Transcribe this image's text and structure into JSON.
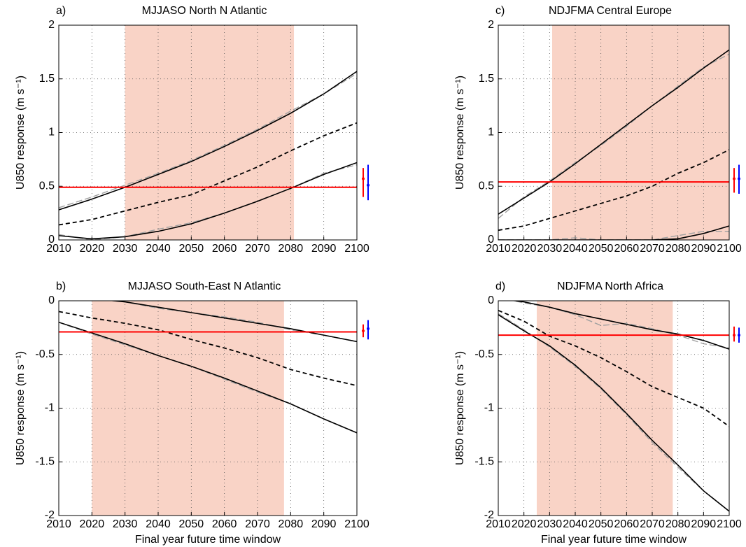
{
  "chart_data": [
    {
      "type": "line",
      "label": "a)",
      "title": "MJJASO North N Atlantic",
      "ylabel": "U850 response (m s⁻¹)",
      "x": [
        2010,
        2020,
        2030,
        2040,
        2050,
        2060,
        2070,
        2080,
        2090,
        2100
      ],
      "xlim": [
        2010,
        2100
      ],
      "xticks": [
        2010,
        2020,
        2030,
        2040,
        2050,
        2060,
        2070,
        2080,
        2090,
        2100
      ],
      "ylim": [
        0,
        2
      ],
      "yticks": [
        0,
        0.5,
        1,
        1.5,
        2
      ],
      "grid": true,
      "shade": [
        2030,
        2081
      ],
      "shade_color": "#f9d3c6",
      "threshold": 0.49,
      "threshold_color": "#ff0000",
      "series": [
        {
          "color": "#a0a0a0",
          "style": "dashed",
          "values": [
            0.3,
            0.4,
            0.51,
            0.62,
            0.74,
            0.88,
            1.03,
            1.2,
            1.36,
            1.55
          ]
        },
        {
          "color": "#a0a0a0",
          "style": "dashed",
          "values": [
            0.05,
            0.0,
            0.03,
            0.1,
            0.16,
            0.25,
            0.36,
            0.48,
            0.62,
            0.7
          ]
        },
        {
          "color": "#000000",
          "style": "solid",
          "values": [
            0.28,
            0.38,
            0.49,
            0.61,
            0.73,
            0.87,
            1.02,
            1.18,
            1.36,
            1.57
          ]
        },
        {
          "color": "#000000",
          "style": "dashed",
          "values": [
            0.14,
            0.19,
            0.27,
            0.35,
            0.42,
            0.55,
            0.68,
            0.83,
            0.97,
            1.09
          ]
        },
        {
          "color": "#000000",
          "style": "solid",
          "values": [
            0.04,
            0.01,
            0.03,
            0.08,
            0.15,
            0.25,
            0.36,
            0.48,
            0.61,
            0.72
          ]
        }
      ],
      "error_bars": [
        {
          "color": "#ff0000",
          "value": 0.57,
          "low": 0.4,
          "high": 0.67
        },
        {
          "color": "#0000ff",
          "value": 0.51,
          "low": 0.37,
          "high": 0.7
        }
      ]
    },
    {
      "type": "line",
      "label": "c)",
      "title": "NDJFMA Central Europe",
      "ylabel": "U850 response (m s⁻¹)",
      "x": [
        2010,
        2020,
        2030,
        2040,
        2050,
        2060,
        2070,
        2080,
        2090,
        2100
      ],
      "xlim": [
        2010,
        2100
      ],
      "xticks": [
        2010,
        2020,
        2030,
        2040,
        2050,
        2060,
        2070,
        2080,
        2090,
        2100
      ],
      "ylim": [
        0,
        2
      ],
      "yticks": [
        0,
        0.5,
        1,
        1.5,
        2
      ],
      "grid": true,
      "shade": [
        2031,
        2100
      ],
      "shade_color": "#f9d3c6",
      "threshold": 0.54,
      "threshold_color": "#ff0000",
      "series": [
        {
          "color": "#a0a0a0",
          "style": "dashed",
          "values": [
            0.2,
            0.4,
            0.55,
            0.72,
            0.88,
            1.06,
            1.25,
            1.43,
            1.61,
            1.73
          ]
        },
        {
          "color": "#a0a0a0",
          "style": "dashed",
          "values": [
            0,
            0,
            0,
            0.02,
            0,
            0,
            0,
            0.04,
            0.08,
            0.08
          ]
        },
        {
          "color": "#000000",
          "style": "solid",
          "values": [
            0.24,
            0.39,
            0.54,
            0.71,
            0.89,
            1.07,
            1.25,
            1.42,
            1.6,
            1.77
          ]
        },
        {
          "color": "#000000",
          "style": "dashed",
          "values": [
            0.09,
            0.13,
            0.2,
            0.27,
            0.34,
            0.41,
            0.5,
            0.62,
            0.72,
            0.84
          ]
        },
        {
          "color": "#000000",
          "style": "solid",
          "values": [
            0,
            0,
            0,
            0,
            0,
            0,
            0,
            0.01,
            0.06,
            0.13
          ]
        }
      ],
      "error_bars": [
        {
          "color": "#ff0000",
          "value": 0.57,
          "low": 0.44,
          "high": 0.67
        },
        {
          "color": "#0000ff",
          "value": 0.57,
          "low": 0.43,
          "high": 0.7
        }
      ]
    },
    {
      "type": "line",
      "label": "b)",
      "title": "MJJASO South-East N Atlantic",
      "ylabel": "U850 response (m s⁻¹)",
      "xlabel": "Final year future time window",
      "x": [
        2010,
        2020,
        2030,
        2040,
        2050,
        2060,
        2070,
        2080,
        2090,
        2100
      ],
      "xlim": [
        2010,
        2100
      ],
      "xticks": [
        2010,
        2020,
        2030,
        2040,
        2050,
        2060,
        2070,
        2080,
        2090,
        2100
      ],
      "ylim": [
        -2,
        0
      ],
      "yticks": [
        -2,
        -1.5,
        -1,
        -0.5,
        0
      ],
      "grid": true,
      "shade": [
        2020,
        2078
      ],
      "shade_color": "#f9d3c6",
      "threshold": -0.29,
      "threshold_color": "#ff0000",
      "series": [
        {
          "color": "#a0a0a0",
          "style": "dashed",
          "values": [
            0.04,
            0.02,
            -0.01,
            -0.07,
            -0.11,
            -0.15,
            -0.2,
            -0.27,
            -0.32,
            -0.38
          ]
        },
        {
          "color": "#a0a0a0",
          "style": "dashed",
          "values": [
            -0.2,
            -0.31,
            -0.41,
            -0.51,
            -0.61,
            -0.73,
            -0.85,
            -0.96,
            -1.1,
            -1.23
          ]
        },
        {
          "color": "#000000",
          "style": "solid",
          "values": [
            0.04,
            0.02,
            -0.01,
            -0.06,
            -0.11,
            -0.16,
            -0.21,
            -0.26,
            -0.32,
            -0.38
          ]
        },
        {
          "color": "#000000",
          "style": "dashed",
          "values": [
            -0.1,
            -0.16,
            -0.21,
            -0.27,
            -0.36,
            -0.44,
            -0.53,
            -0.64,
            -0.72,
            -0.79
          ]
        },
        {
          "color": "#000000",
          "style": "solid",
          "values": [
            -0.2,
            -0.3,
            -0.4,
            -0.51,
            -0.61,
            -0.72,
            -0.84,
            -0.96,
            -1.1,
            -1.23
          ]
        }
      ],
      "error_bars": [
        {
          "color": "#ff0000",
          "value": -0.28,
          "low": -0.34,
          "high": -0.22
        },
        {
          "color": "#0000ff",
          "value": -0.26,
          "low": -0.36,
          "high": -0.18
        }
      ]
    },
    {
      "type": "line",
      "label": "d)",
      "title": "NDJFMA North Africa",
      "ylabel": "U850 response (m s⁻¹)",
      "xlabel": "Final year future time window",
      "x": [
        2010,
        2020,
        2030,
        2040,
        2050,
        2060,
        2070,
        2080,
        2090,
        2100
      ],
      "xlim": [
        2010,
        2100
      ],
      "xticks": [
        2010,
        2020,
        2030,
        2040,
        2050,
        2060,
        2070,
        2080,
        2090,
        2100
      ],
      "ylim": [
        -2,
        0
      ],
      "yticks": [
        -2,
        -1.5,
        -1,
        -0.5,
        0
      ],
      "grid": true,
      "shade": [
        2025,
        2078
      ],
      "shade_color": "#f9d3c6",
      "threshold": -0.32,
      "threshold_color": "#ff0000",
      "series": [
        {
          "color": "#a0a0a0",
          "style": "dashed",
          "values": [
            0.03,
            -0.02,
            -0.06,
            -0.13,
            -0.23,
            -0.21,
            -0.26,
            -0.32,
            -0.4,
            -0.44
          ]
        },
        {
          "color": "#a0a0a0",
          "style": "dashed",
          "values": [
            -0.12,
            -0.27,
            -0.43,
            -0.61,
            -0.82,
            -1.06,
            -1.32,
            -1.55,
            -1.77,
            -1.96
          ]
        },
        {
          "color": "#000000",
          "style": "solid",
          "values": [
            0.02,
            -0.01,
            -0.06,
            -0.12,
            -0.17,
            -0.22,
            -0.27,
            -0.31,
            -0.37,
            -0.45
          ]
        },
        {
          "color": "#000000",
          "style": "dashed",
          "values": [
            -0.09,
            -0.19,
            -0.33,
            -0.42,
            -0.53,
            -0.66,
            -0.8,
            -0.9,
            -1.0,
            -1.17
          ]
        },
        {
          "color": "#000000",
          "style": "solid",
          "values": [
            -0.13,
            -0.28,
            -0.42,
            -0.6,
            -0.81,
            -1.05,
            -1.3,
            -1.53,
            -1.77,
            -1.96
          ]
        }
      ],
      "error_bars": [
        {
          "color": "#ff0000",
          "value": -0.32,
          "low": -0.38,
          "high": -0.24
        },
        {
          "color": "#0000ff",
          "value": -0.32,
          "low": -0.39,
          "high": -0.25
        }
      ]
    }
  ]
}
